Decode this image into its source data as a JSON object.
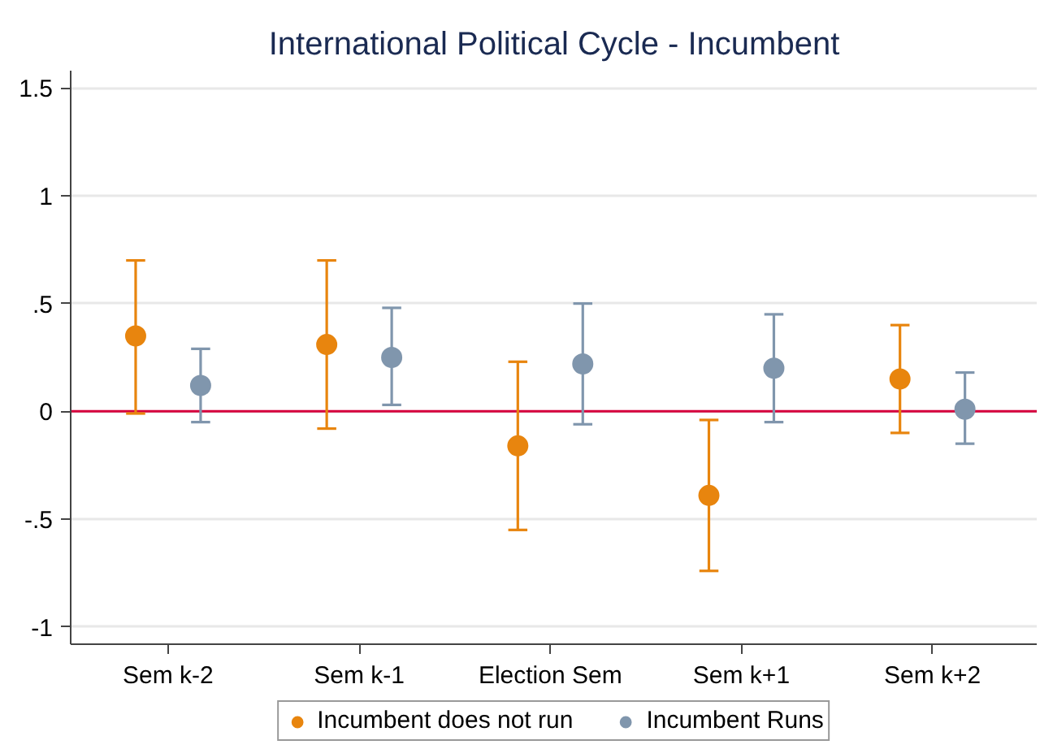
{
  "chart_data": {
    "type": "scatter",
    "title": "International Political Cycle - Incumbent",
    "categories": [
      "Sem k-2",
      "Sem k-1",
      "Election Sem",
      "Sem k+1",
      "Sem k+2"
    ],
    "series": [
      {
        "name": "Incumbent does not run",
        "color": "#e8850e",
        "values": [
          0.35,
          0.31,
          -0.16,
          -0.39,
          0.15
        ],
        "errors": [
          [
            -0.01,
            0.7
          ],
          [
            -0.08,
            0.7
          ],
          [
            -0.55,
            0.23
          ],
          [
            -0.74,
            -0.04
          ],
          [
            -0.1,
            0.4
          ]
        ]
      },
      {
        "name": "Incumbent Runs",
        "color": "#8096ad",
        "values": [
          0.12,
          0.25,
          0.22,
          0.2,
          0.01
        ],
        "errors": [
          [
            -0.05,
            0.29
          ],
          [
            0.03,
            0.48
          ],
          [
            -0.06,
            0.5
          ],
          [
            -0.05,
            0.45
          ],
          [
            -0.15,
            0.18
          ]
        ]
      }
    ],
    "ylim": [
      -1.08,
      1.58
    ],
    "yticks": [
      -1,
      {
        "value": -0.5,
        "label": "-.5"
      },
      0,
      {
        "value": 0.5,
        "label": ".5"
      },
      1,
      1.5
    ],
    "ref_lines": [
      {
        "axis": "y",
        "value": 0,
        "color": "#d6003c"
      }
    ],
    "grid": "y",
    "legend": "bottom",
    "marker": "circle"
  }
}
